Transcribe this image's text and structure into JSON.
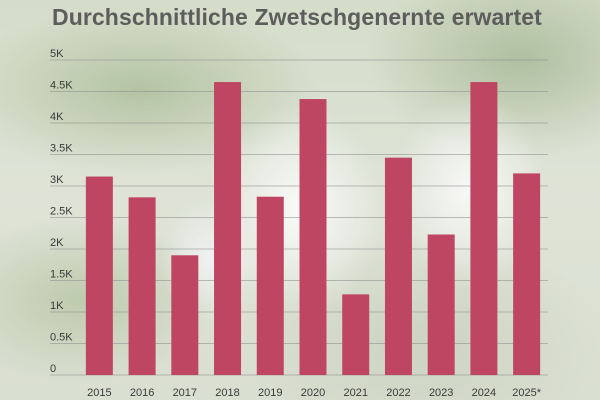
{
  "chart_data": {
    "type": "bar",
    "title": "Durchschnittliche Zwetschgenernte erwartet",
    "categories": [
      "2015",
      "2016",
      "2017",
      "2018",
      "2019",
      "2020",
      "2021",
      "2022",
      "2023",
      "2024",
      "2025*"
    ],
    "values": [
      3150,
      2820,
      1900,
      4650,
      2830,
      4380,
      1280,
      3450,
      2230,
      4650,
      3200
    ],
    "y_ticks": [
      "0",
      "0.5K",
      "1K",
      "1.5K",
      "2K",
      "2.5K",
      "3K",
      "3.5K",
      "4K",
      "4.5K",
      "5K"
    ],
    "ylim": [
      0,
      5000
    ],
    "xlabel": "",
    "ylabel": "",
    "grid": true,
    "bar_color": "#be4662"
  }
}
